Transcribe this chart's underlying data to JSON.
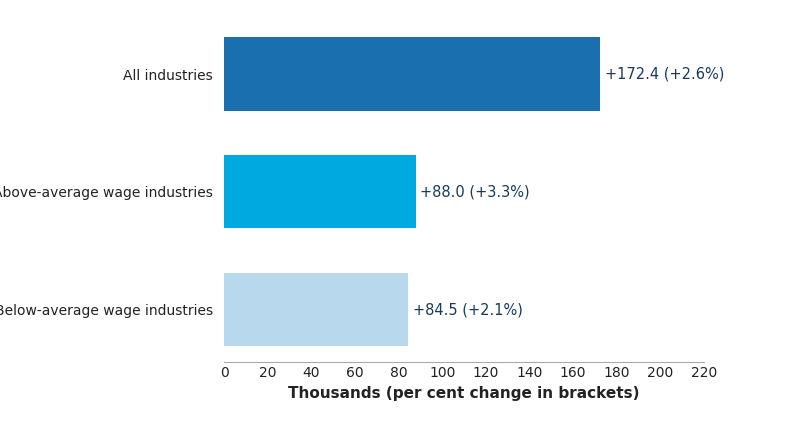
{
  "categories": [
    "Below-average wage industries",
    "Above-average wage industries",
    "All industries"
  ],
  "values": [
    84.5,
    88.0,
    172.4
  ],
  "bar_colors": [
    "#b8d9ed",
    "#00a9e0",
    "#1a6faf"
  ],
  "labels": [
    "+84.5 (+2.1%)",
    "+88.0 (+3.3%)",
    "+172.4 (+2.6%)"
  ],
  "label_color": "#1a3a5c",
  "xlabel": "Thousands (per cent change in brackets)",
  "xlim": [
    0,
    220
  ],
  "xticks": [
    0,
    20,
    40,
    60,
    80,
    100,
    120,
    140,
    160,
    180,
    200,
    220
  ],
  "bar_height": 0.62,
  "label_fontsize": 10.5,
  "tick_fontsize": 10,
  "xlabel_fontsize": 11,
  "ylabel_fontsize": 10,
  "background_color": "#ffffff",
  "figsize": [
    8.0,
    4.41
  ],
  "dpi": 100
}
